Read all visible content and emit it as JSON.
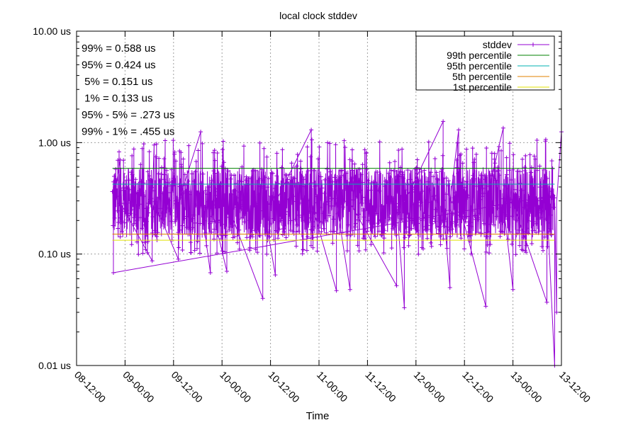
{
  "chart_data": {
    "type": "line",
    "title": "local clock stddev",
    "xlabel": "Time",
    "ylabel": "",
    "y_scale": "log",
    "ylim": [
      0.01,
      10
    ],
    "y_ticks": [
      0.01,
      0.1,
      1,
      10
    ],
    "y_tick_labels": [
      "0.01 us",
      "0.10 us",
      "1.00 us",
      "10.00 us"
    ],
    "x_ticks": [
      0,
      0.5,
      1,
      1.5,
      2,
      2.5,
      3,
      3.5,
      4,
      4.5,
      5
    ],
    "x_tick_labels": [
      "08-12:00",
      "09-00:00",
      "09-12:00",
      "10-00:00",
      "10-12:00",
      "11-00:00",
      "11-12:00",
      "12-00:00",
      "12-12:00",
      "13-00:00",
      "13-12:00"
    ],
    "xlim": [
      0,
      5
    ],
    "x_unit": "days since 08-12:00",
    "grid": true,
    "legend_position": "top-right",
    "stats_lines": [
      "99% = 0.588 us",
      "95% = 0.424 us",
      " 5% = 0.151 us",
      " 1% = 0.133 us",
      "95% - 5% = .273 us",
      "99% - 1% = .455 us"
    ],
    "series": [
      {
        "name": "stddev",
        "color": "#9400d3",
        "x_range": [
          0.37,
          4.93
        ],
        "typical_range": [
          0.14,
          0.6
        ],
        "outliers": [
          {
            "x": 0.38,
            "y": 0.068
          },
          {
            "x": 0.45,
            "y": 0.7
          },
          {
            "x": 0.78,
            "y": 0.087
          },
          {
            "x": 0.8,
            "y": 0.95
          },
          {
            "x": 1.05,
            "y": 0.09
          },
          {
            "x": 1.28,
            "y": 1.25
          },
          {
            "x": 1.38,
            "y": 0.068
          },
          {
            "x": 1.55,
            "y": 0.07
          },
          {
            "x": 1.92,
            "y": 0.04
          },
          {
            "x": 2.05,
            "y": 0.065
          },
          {
            "x": 2.42,
            "y": 1.3
          },
          {
            "x": 2.68,
            "y": 0.047
          },
          {
            "x": 2.82,
            "y": 0.048
          },
          {
            "x": 3.3,
            "y": 0.052
          },
          {
            "x": 3.38,
            "y": 0.033
          },
          {
            "x": 3.78,
            "y": 1.55
          },
          {
            "x": 3.85,
            "y": 0.05
          },
          {
            "x": 3.94,
            "y": 1.3
          },
          {
            "x": 4.22,
            "y": 0.034
          },
          {
            "x": 4.4,
            "y": 1.35
          },
          {
            "x": 4.5,
            "y": 0.048
          },
          {
            "x": 4.85,
            "y": 0.037
          },
          {
            "x": 4.93,
            "y": 0.01
          },
          {
            "x": 4.95,
            "y": 0.03
          },
          {
            "x": 5.0,
            "y": 1.25
          }
        ]
      },
      {
        "name": "99th percentile",
        "color": "#008000",
        "value": 0.588
      },
      {
        "name": "95th percentile",
        "color": "#00b0b0",
        "value": 0.424
      },
      {
        "name": "5th percentile",
        "color": "#e08000",
        "value": 0.151
      },
      {
        "name": "1st percentile",
        "color": "#e0e000",
        "value": 0.133
      }
    ]
  }
}
